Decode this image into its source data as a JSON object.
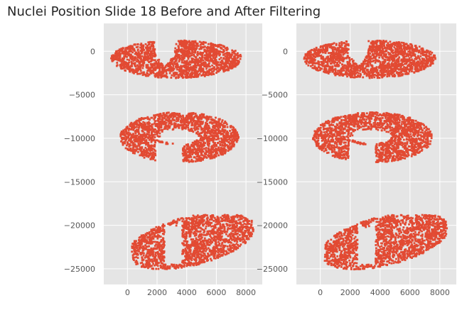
{
  "figure": {
    "title": "Nuclei Position Slide 18 Before and After Filtering"
  },
  "chart_data": [
    {
      "type": "scatter",
      "panel": "before",
      "title": "",
      "xlabel": "",
      "ylabel": "",
      "xlim": [
        -1600,
        9100
      ],
      "ylim": [
        -26800,
        3200
      ],
      "xticks": [
        0,
        2000,
        4000,
        6000,
        8000
      ],
      "yticks": [
        0,
        -5000,
        -10000,
        -15000,
        -20000,
        -25000
      ],
      "xtick_labels": [
        "0",
        "2000",
        "4000",
        "6000",
        "8000"
      ],
      "ytick_labels": [
        "0",
        "−5000",
        "−10000",
        "−15000",
        "−20000",
        "−25000"
      ],
      "grid": true,
      "point_color": "#E24A33",
      "background": "#E5E5E5",
      "regions": [
        {
          "name": "section-1",
          "x_range": [
            -1100,
            7800
          ],
          "y_range": [
            -3300,
            1600
          ]
        },
        {
          "name": "section-2",
          "x_range": [
            -800,
            7600
          ],
          "y_range": [
            -13000,
            -7000
          ]
        },
        {
          "name": "section-3",
          "x_range": [
            300,
            8500
          ],
          "y_range": [
            -25400,
            -18800
          ]
        }
      ]
    },
    {
      "type": "scatter",
      "panel": "after",
      "title": "",
      "xlabel": "",
      "ylabel": "",
      "xlim": [
        -1600,
        9100
      ],
      "ylim": [
        -26800,
        3200
      ],
      "xticks": [
        0,
        2000,
        4000,
        6000,
        8000
      ],
      "yticks": [
        0,
        -5000,
        -10000,
        -15000,
        -20000,
        -25000
      ],
      "xtick_labels": [
        "0",
        "2000",
        "4000",
        "6000",
        "8000"
      ],
      "ytick_labels": [
        "0",
        "−5000",
        "−10000",
        "−15000",
        "−20000",
        "−25000"
      ],
      "grid": true,
      "point_color": "#E24A33",
      "background": "#E5E5E5",
      "regions": [
        {
          "name": "section-1",
          "x_range": [
            -1100,
            7800
          ],
          "y_range": [
            -3300,
            1600
          ]
        },
        {
          "name": "section-2",
          "x_range": [
            -800,
            7600
          ],
          "y_range": [
            -13000,
            -7000
          ]
        },
        {
          "name": "section-3",
          "x_range": [
            300,
            8500
          ],
          "y_range": [
            -25400,
            -18800
          ]
        }
      ]
    }
  ]
}
